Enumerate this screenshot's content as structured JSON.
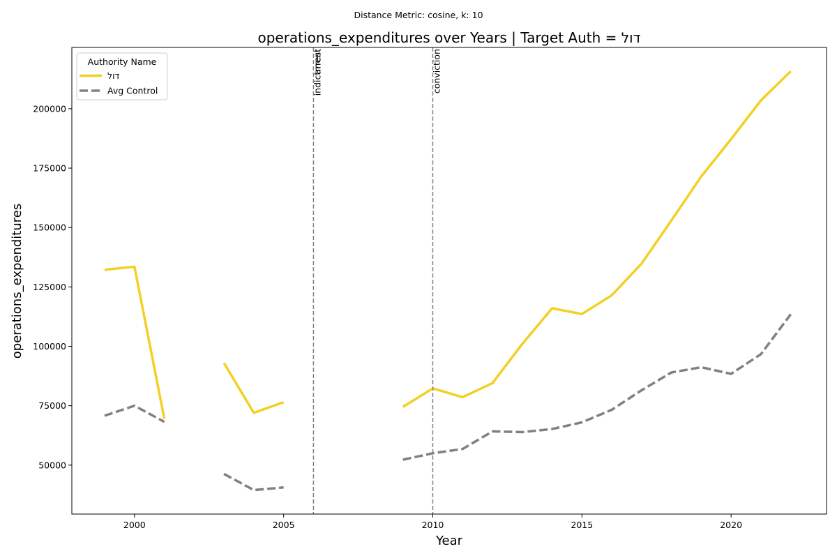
{
  "chart_data": {
    "type": "line",
    "suptitle": "Distance Metric: cosine, k: 10",
    "title": "operations_expenditures over Years | Target Auth = דול",
    "xlabel": "Year",
    "ylabel": "operations_expenditures",
    "xlim": [
      1997.9,
      2023.2
    ],
    "ylim": [
      29400,
      225800
    ],
    "xticks": [
      2000,
      2005,
      2010,
      2015,
      2020
    ],
    "yticks": [
      50000,
      75000,
      100000,
      125000,
      150000,
      175000,
      200000
    ],
    "ytick_labels": [
      "50000",
      "75000",
      "100000",
      "125000",
      "150000",
      "175000",
      "200000"
    ],
    "legend": {
      "title": "Authority Name",
      "position": "upper-left"
    },
    "events": [
      {
        "x": 2006,
        "labels": [
          "indictment",
          "arrest"
        ]
      },
      {
        "x": 2010,
        "labels": [
          "conviction"
        ]
      }
    ],
    "series": [
      {
        "name": "דול",
        "color": "#f2d024",
        "style": "solid",
        "points": [
          [
            1999,
            132200
          ],
          [
            2000,
            133500
          ],
          [
            2001,
            69500
          ],
          [
            2002,
            null
          ],
          [
            2003,
            93000
          ],
          [
            2004,
            72000
          ],
          [
            2005,
            76500
          ],
          [
            2006,
            null
          ],
          [
            2007,
            null
          ],
          [
            2008,
            null
          ],
          [
            2009,
            74500
          ],
          [
            2010,
            82300
          ],
          [
            2011,
            78600
          ],
          [
            2012,
            84500
          ],
          [
            2013,
            101000
          ],
          [
            2014,
            116000
          ],
          [
            2015,
            113600
          ],
          [
            2016,
            121500
          ],
          [
            2017,
            134800
          ],
          [
            2018,
            153000
          ],
          [
            2019,
            171500
          ],
          [
            2020,
            187200
          ],
          [
            2021,
            203500
          ],
          [
            2022,
            215800
          ]
        ]
      },
      {
        "name": "Avg Control",
        "color": "#808080",
        "style": "dashed",
        "points": [
          [
            1999,
            70800
          ],
          [
            2000,
            75000
          ],
          [
            2001,
            68200
          ],
          [
            2002,
            null
          ],
          [
            2003,
            46300
          ],
          [
            2004,
            39500
          ],
          [
            2005,
            40600
          ],
          [
            2006,
            null
          ],
          [
            2007,
            null
          ],
          [
            2008,
            null
          ],
          [
            2009,
            52300
          ],
          [
            2010,
            55000
          ],
          [
            2011,
            56800
          ],
          [
            2012,
            64200
          ],
          [
            2013,
            63900
          ],
          [
            2014,
            65200
          ],
          [
            2015,
            68000
          ],
          [
            2016,
            73300
          ],
          [
            2017,
            81500
          ],
          [
            2018,
            89000
          ],
          [
            2019,
            91200
          ],
          [
            2020,
            88400
          ],
          [
            2021,
            96700
          ],
          [
            2022,
            113500
          ]
        ]
      }
    ]
  }
}
